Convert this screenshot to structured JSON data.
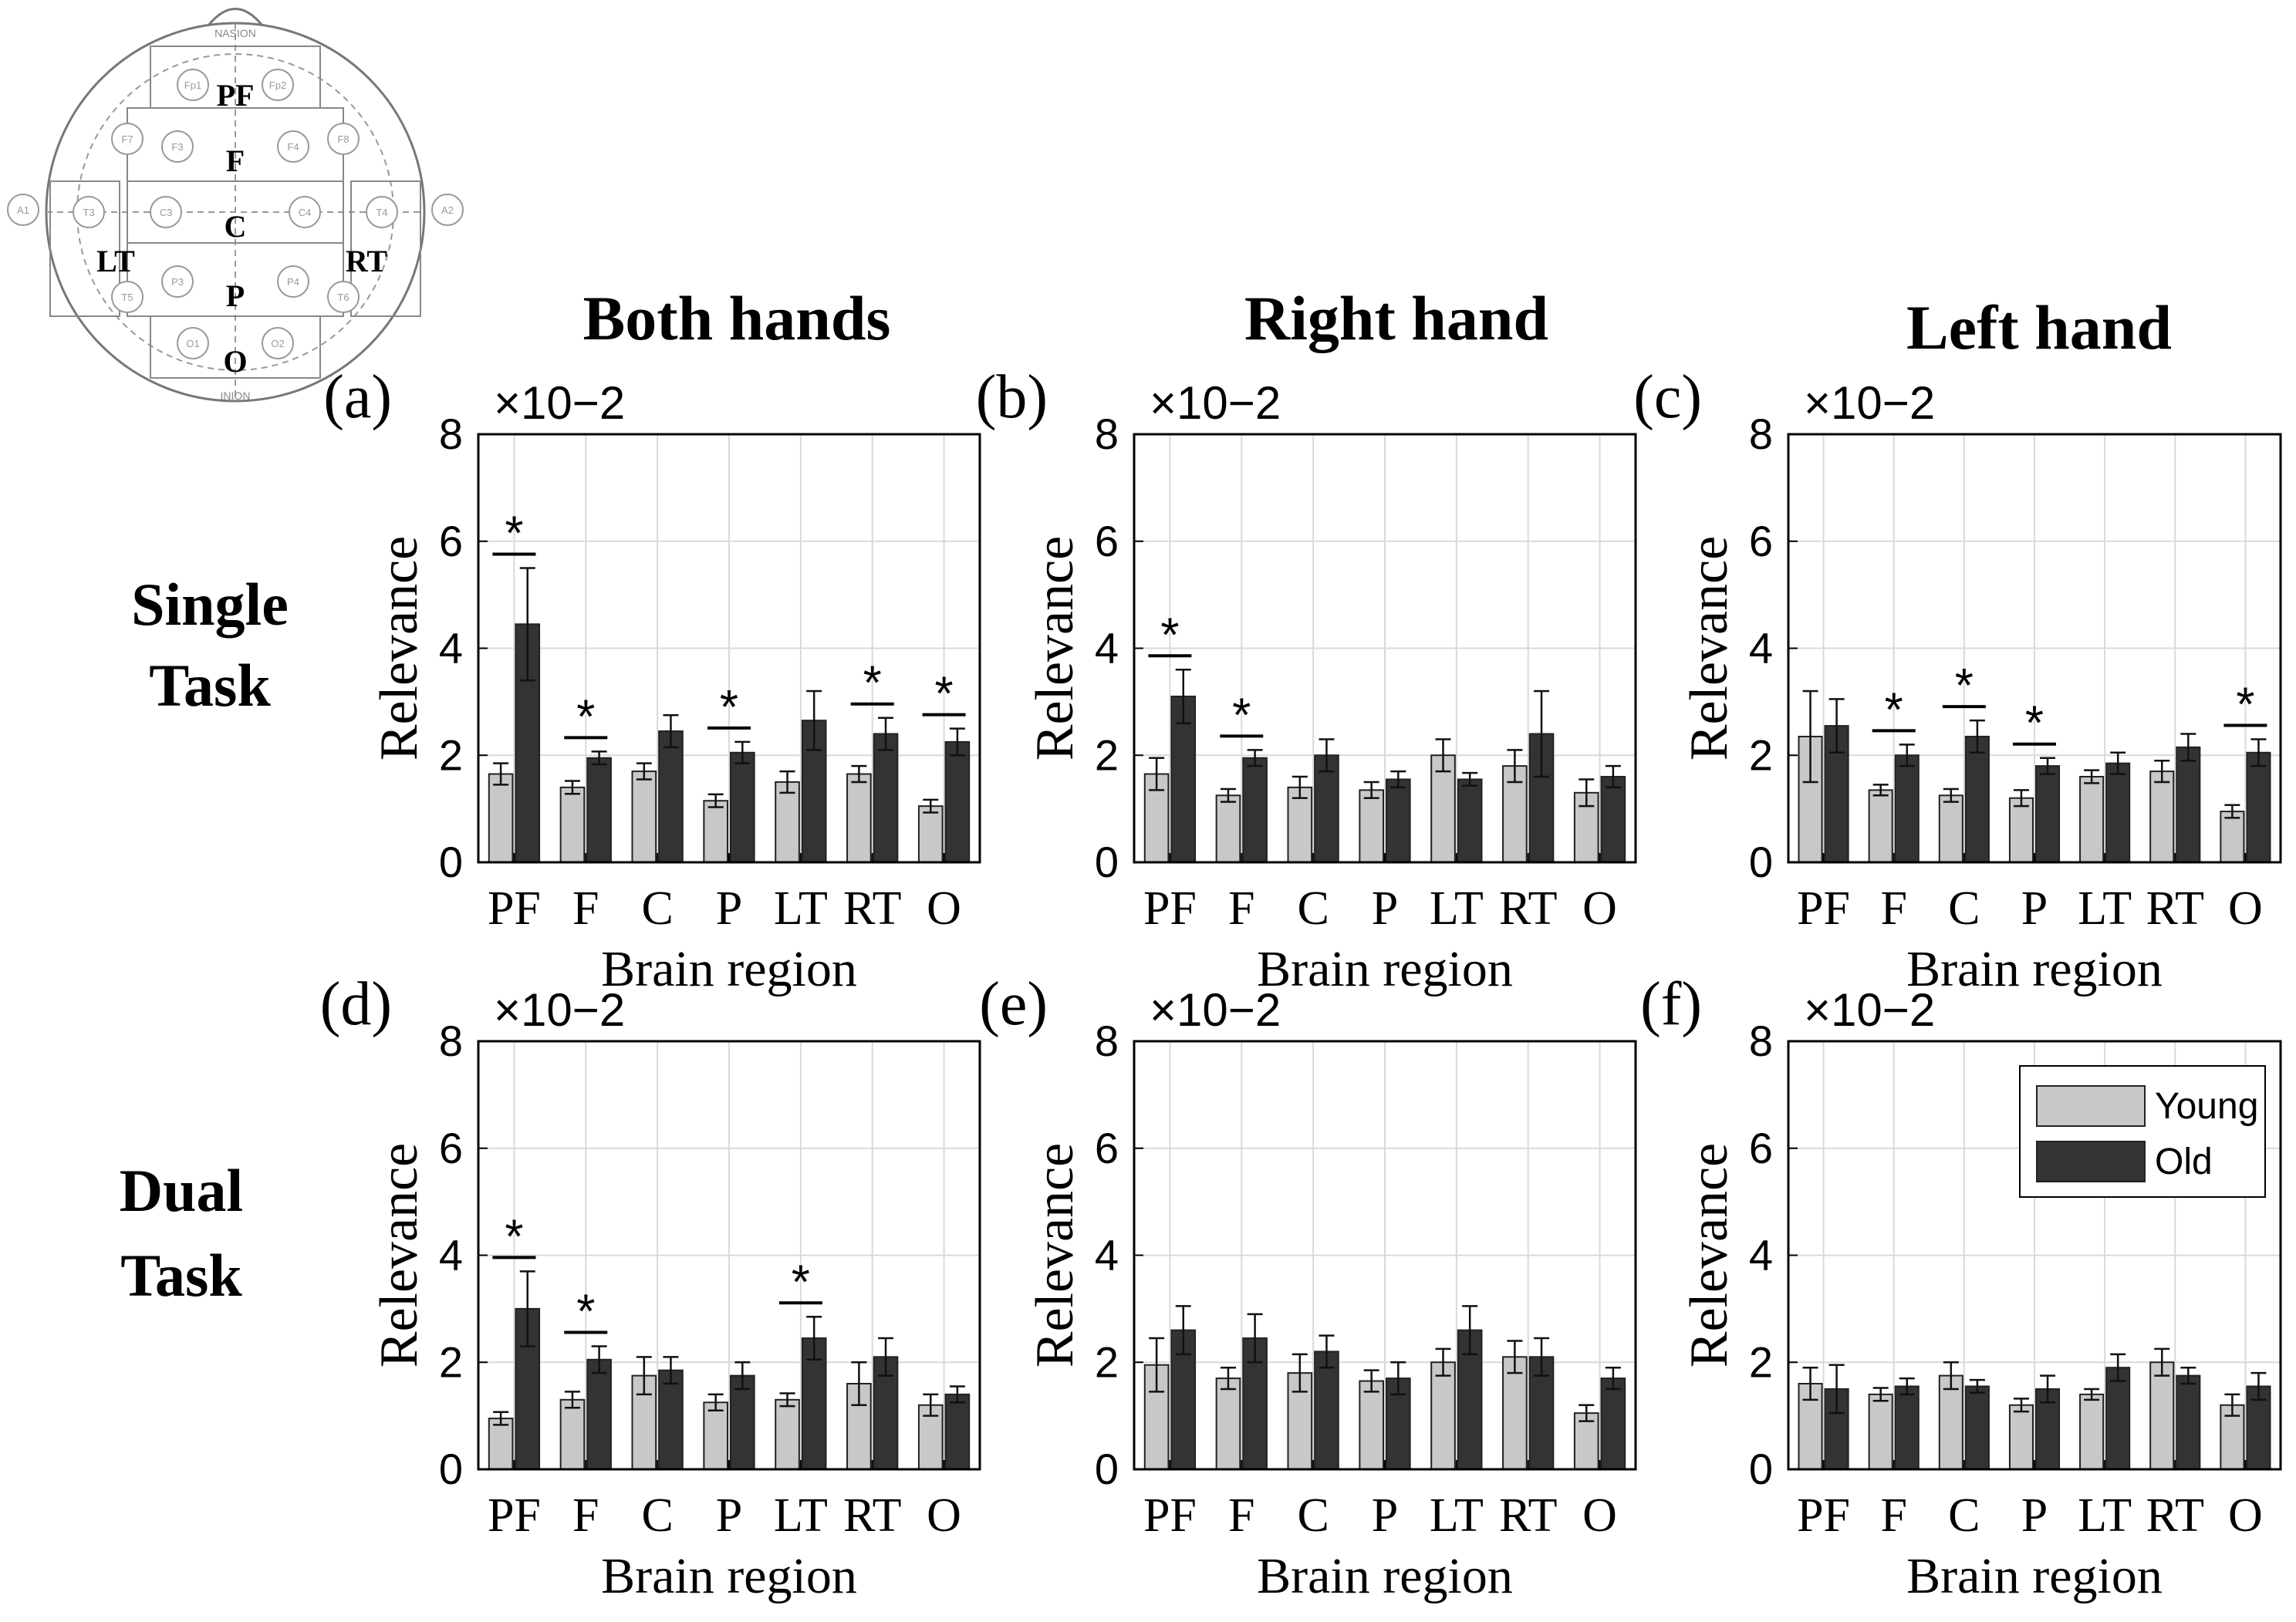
{
  "figure": {
    "column_titles": [
      "Both hands",
      "Right hand",
      "Left hand"
    ],
    "row_titles": [
      [
        "Single",
        "Task"
      ],
      [
        "Dual",
        "Task"
      ]
    ],
    "colors": {
      "young": "#c8c8c8",
      "old": "#333333",
      "axis": "#000000",
      "grid": "#d9d9d9"
    }
  },
  "electrode_map": {
    "regions": [
      "PF",
      "F",
      "C",
      "P",
      "O",
      "LT",
      "RT"
    ],
    "electrodes": [
      "Fp1",
      "Fp2",
      "F7",
      "F3",
      "F4",
      "F8",
      "A1",
      "T3",
      "C3",
      "C4",
      "T4",
      "A2",
      "T5",
      "P3",
      "P4",
      "T6",
      "O1",
      "O2"
    ],
    "nasion_label": "NASION",
    "inion_label": "INION"
  },
  "legend": {
    "entries": [
      "Young",
      "Old"
    ]
  },
  "chart_data": [
    {
      "panel": "(a)",
      "type": "bar",
      "exponent_label": "×10−2",
      "categories": [
        "PF",
        "F",
        "C",
        "P",
        "LT",
        "RT",
        "O"
      ],
      "xlabel": "Brain region",
      "ylabel": "Relevance",
      "ylim": [
        0,
        8
      ],
      "yticks": [
        "0",
        "2",
        "4",
        "6",
        "8"
      ],
      "grid": true,
      "series": [
        {
          "name": "Young",
          "values": [
            1.65,
            1.4,
            1.7,
            1.15,
            1.5,
            1.65,
            1.05
          ],
          "errors": [
            0.2,
            0.12,
            0.15,
            0.12,
            0.2,
            0.15,
            0.12
          ]
        },
        {
          "name": "Old",
          "values": [
            4.45,
            1.95,
            2.45,
            2.05,
            2.65,
            2.4,
            2.25
          ],
          "errors": [
            1.05,
            0.12,
            0.3,
            0.2,
            0.55,
            0.3,
            0.25
          ]
        }
      ],
      "significance": [
        "*",
        "*",
        "",
        "*",
        "",
        "*",
        "*"
      ]
    },
    {
      "panel": "(b)",
      "type": "bar",
      "exponent_label": "×10−2",
      "categories": [
        "PF",
        "F",
        "C",
        "P",
        "LT",
        "RT",
        "O"
      ],
      "xlabel": "Brain region",
      "ylabel": "Relevance",
      "ylim": [
        0,
        8
      ],
      "yticks": [
        "0",
        "2",
        "4",
        "6",
        "8"
      ],
      "grid": true,
      "series": [
        {
          "name": "Young",
          "values": [
            1.65,
            1.25,
            1.4,
            1.35,
            2.0,
            1.8,
            1.3
          ],
          "errors": [
            0.3,
            0.12,
            0.2,
            0.15,
            0.3,
            0.3,
            0.25
          ]
        },
        {
          "name": "Old",
          "values": [
            3.1,
            1.95,
            2.0,
            1.55,
            1.55,
            2.4,
            1.6
          ],
          "errors": [
            0.5,
            0.15,
            0.3,
            0.15,
            0.12,
            0.8,
            0.2
          ]
        }
      ],
      "significance": [
        "*",
        "*",
        "",
        "",
        "",
        "",
        ""
      ]
    },
    {
      "panel": "(c)",
      "type": "bar",
      "exponent_label": "×10−2",
      "categories": [
        "PF",
        "F",
        "C",
        "P",
        "LT",
        "RT",
        "O"
      ],
      "xlabel": "Brain region",
      "ylabel": "Relevance",
      "ylim": [
        0,
        8
      ],
      "yticks": [
        "0",
        "2",
        "4",
        "6",
        "8"
      ],
      "grid": true,
      "series": [
        {
          "name": "Young",
          "values": [
            2.35,
            1.35,
            1.25,
            1.2,
            1.6,
            1.7,
            0.95
          ],
          "errors": [
            0.85,
            0.1,
            0.12,
            0.15,
            0.12,
            0.2,
            0.12
          ]
        },
        {
          "name": "Old",
          "values": [
            2.55,
            2.0,
            2.35,
            1.8,
            1.85,
            2.15,
            2.05
          ],
          "errors": [
            0.5,
            0.2,
            0.3,
            0.15,
            0.2,
            0.25,
            0.25
          ]
        }
      ],
      "significance": [
        "",
        "*",
        "*",
        "*",
        "",
        "",
        "*"
      ]
    },
    {
      "panel": "(d)",
      "type": "bar",
      "exponent_label": "×10−2",
      "categories": [
        "PF",
        "F",
        "C",
        "P",
        "LT",
        "RT",
        "O"
      ],
      "xlabel": "Brain region",
      "ylabel": "Relevance",
      "ylim": [
        0,
        8
      ],
      "yticks": [
        "0",
        "2",
        "4",
        "6",
        "8"
      ],
      "grid": true,
      "series": [
        {
          "name": "Young",
          "values": [
            0.95,
            1.3,
            1.75,
            1.25,
            1.3,
            1.6,
            1.2
          ],
          "errors": [
            0.12,
            0.15,
            0.35,
            0.15,
            0.12,
            0.4,
            0.2
          ]
        },
        {
          "name": "Old",
          "values": [
            3.0,
            2.05,
            1.85,
            1.75,
            2.45,
            2.1,
            1.4
          ],
          "errors": [
            0.7,
            0.25,
            0.25,
            0.25,
            0.4,
            0.35,
            0.15
          ]
        }
      ],
      "significance": [
        "*",
        "*",
        "",
        "",
        "*",
        "",
        ""
      ]
    },
    {
      "panel": "(e)",
      "type": "bar",
      "exponent_label": "×10−2",
      "categories": [
        "PF",
        "F",
        "C",
        "P",
        "LT",
        "RT",
        "O"
      ],
      "xlabel": "Brain region",
      "ylabel": "Relevance",
      "ylim": [
        0,
        8
      ],
      "yticks": [
        "0",
        "2",
        "4",
        "6",
        "8"
      ],
      "grid": true,
      "series": [
        {
          "name": "Young",
          "values": [
            1.95,
            1.7,
            1.8,
            1.65,
            2.0,
            2.1,
            1.05
          ],
          "errors": [
            0.5,
            0.2,
            0.35,
            0.2,
            0.25,
            0.3,
            0.15
          ]
        },
        {
          "name": "Old",
          "values": [
            2.6,
            2.45,
            2.2,
            1.7,
            2.6,
            2.1,
            1.7
          ],
          "errors": [
            0.45,
            0.45,
            0.3,
            0.3,
            0.45,
            0.35,
            0.2
          ]
        }
      ],
      "significance": [
        "",
        "",
        "",
        "",
        "",
        "",
        ""
      ]
    },
    {
      "panel": "(f)",
      "type": "bar",
      "exponent_label": "×10−2",
      "categories": [
        "PF",
        "F",
        "C",
        "P",
        "LT",
        "RT",
        "O"
      ],
      "xlabel": "Brain region",
      "ylabel": "Relevance",
      "ylim": [
        0,
        8
      ],
      "yticks": [
        "0",
        "2",
        "4",
        "6",
        "8"
      ],
      "grid": true,
      "legend_position": "top-right",
      "series": [
        {
          "name": "Young",
          "values": [
            1.6,
            1.4,
            1.75,
            1.2,
            1.4,
            2.0,
            1.2
          ],
          "errors": [
            0.3,
            0.12,
            0.25,
            0.12,
            0.1,
            0.25,
            0.2
          ]
        },
        {
          "name": "Old",
          "values": [
            1.5,
            1.55,
            1.55,
            1.5,
            1.9,
            1.75,
            1.55
          ],
          "errors": [
            0.45,
            0.15,
            0.12,
            0.25,
            0.25,
            0.15,
            0.25
          ]
        }
      ],
      "significance": [
        "",
        "",
        "",
        "",
        "",
        "",
        ""
      ]
    }
  ]
}
